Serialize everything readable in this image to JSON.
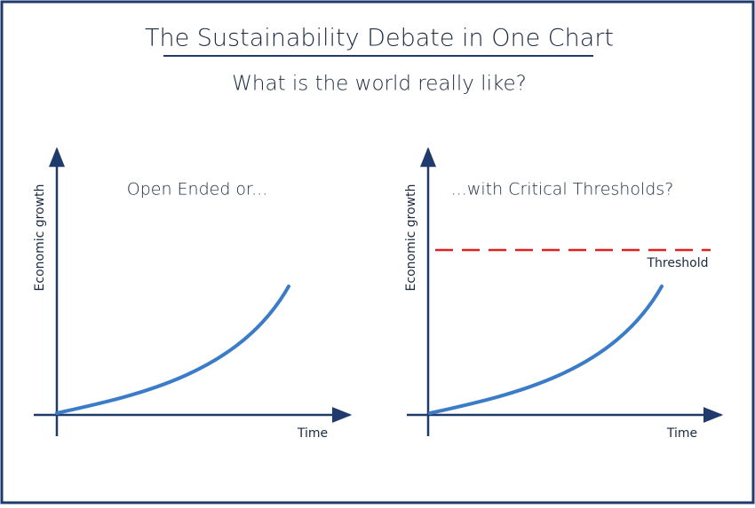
{
  "title": "The Sustainability Debate in One Chart",
  "subtitle": "What is the world really like?",
  "panels": [
    {
      "label": "Open Ended or...",
      "y_axis": "Economic growth",
      "x_axis": "Time"
    },
    {
      "label": "...with Critical Thresholds?",
      "y_axis": "Economic growth",
      "x_axis": "Time",
      "threshold": "Threshold"
    }
  ]
}
